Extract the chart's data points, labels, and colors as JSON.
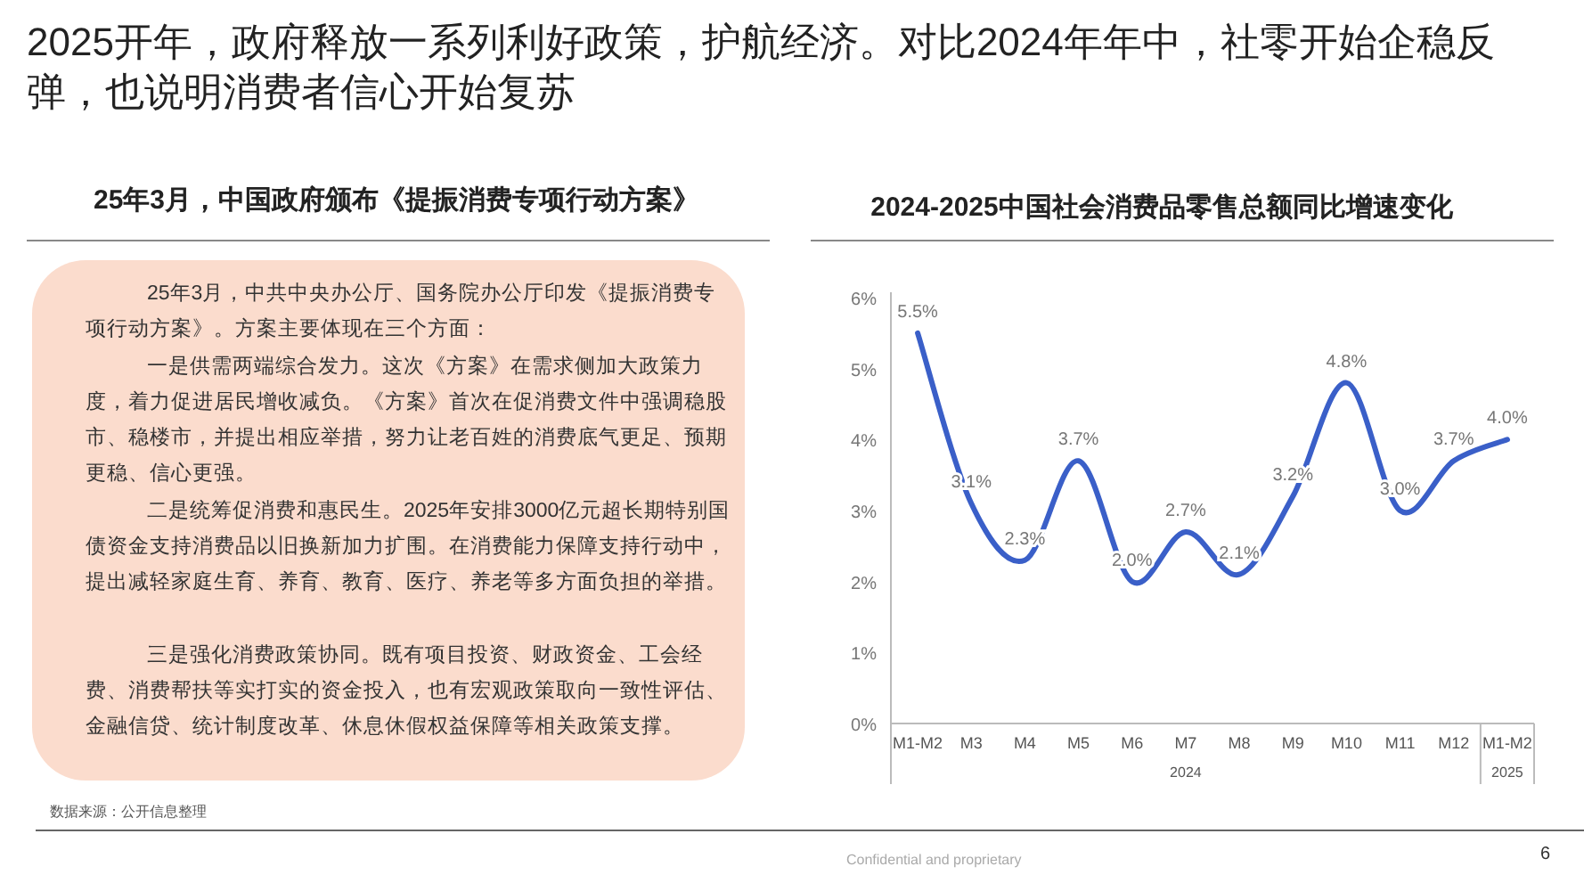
{
  "chart_data": {
    "type": "line",
    "title": "2024-2025中国社会消费品零售总额同比增速变化",
    "categories": [
      "M1-M2",
      "M3",
      "M4",
      "M5",
      "M6",
      "M7",
      "M8",
      "M9",
      "M10",
      "M11",
      "M12",
      "M1-M2"
    ],
    "series": [
      {
        "color": "#3a5fc8",
        "values": [
          5.5,
          3.1,
          2.3,
          3.7,
          2.0,
          2.7,
          2.1,
          3.2,
          4.8,
          3.0,
          3.7,
          4.0
        ],
        "value_labels": [
          "5.5%",
          "3.1%",
          "2.3%",
          "3.7%",
          "2.0%",
          "2.7%",
          "2.1%",
          "3.2%",
          "4.8%",
          "3.0%",
          "3.7%",
          "4.0%"
        ]
      }
    ],
    "ylim": [
      0,
      6
    ],
    "yticks": [
      {
        "value": 0,
        "label": "0%"
      },
      {
        "value": 1,
        "label": "1%"
      },
      {
        "value": 2,
        "label": "2%"
      },
      {
        "value": 3,
        "label": "3%"
      },
      {
        "value": 4,
        "label": "4%"
      },
      {
        "value": 5,
        "label": "5%"
      },
      {
        "value": 6,
        "label": "6%"
      }
    ],
    "grid": false,
    "marker": "none",
    "line_style": "solid",
    "annotations": [
      "2025开年，政府释放一系列利好政策，护航经济。对比2024年年中，社零开始企稳反弹，也说明消费者信心开始复苏",
      "25年3月，中国政府颁布《提振消费专项行动方案》",
      "25年3月，中共中央办公厅、国务院办公厅印发《提振消费专项行动方案》。方案主要体现在三个方面：",
      "一是供需两端综合发力。这次《方案》在需求侧加大政策力度，着力促进居民增收减负。《方案》首次在促消费文件中强调稳股市、稳楼市，并提出相应举措，努力让老百姓的消费底气更足、预期更稳、信心更强。",
      "二是统筹促消费和惠民生。2025年安排3000亿元超长期特别国债资金支持消费品以旧换新加力扩围。在消费能力保障支持行动中，提出减轻家庭生育、养育、教育、医疗、养老等多方面负担的举措。",
      "三是强化消费政策协同。既有项目投资、财政资金、工会经费、消费帮扶等实打实的资金投入，也有宏观政策取向一致性评估、金融信贷、统计制度改革、休息休假权益保障等相关政策支撑。",
      "数据来源：公开信息整理",
      "Confidential and proprietary",
      "6",
      "2024",
      "2025"
    ]
  }
}
